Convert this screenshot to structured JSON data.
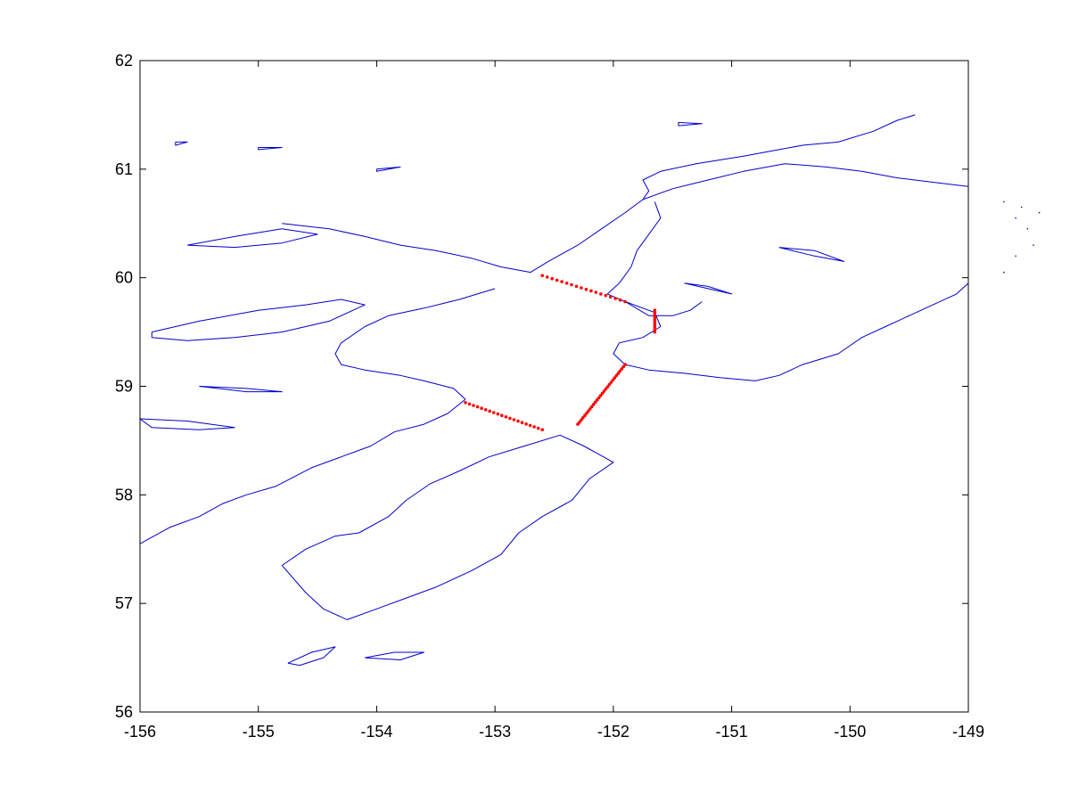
{
  "map": {
    "type": "coastline-map",
    "xlim": [
      -156,
      -149
    ],
    "ylim": [
      56,
      62
    ],
    "x_ticks": [
      -156,
      -155,
      -154,
      -153,
      -152,
      -151,
      -150,
      -149
    ],
    "y_ticks": [
      56,
      57,
      58,
      59,
      60,
      61,
      62
    ],
    "x_tick_labels": [
      "-156",
      "-155",
      "-154",
      "-153",
      "-152",
      "-151",
      "-150",
      "-149"
    ],
    "y_tick_labels": [
      "56",
      "57",
      "58",
      "59",
      "60",
      "61",
      "62"
    ],
    "coast_color": "#0000cc",
    "transect_color": "#ff0000",
    "grid": false,
    "coastlines": [
      {
        "name": "north-coast-west-to-head",
        "lonlat": [
          [
            -154.8,
            60.5
          ],
          [
            -154.4,
            60.45
          ],
          [
            -154.1,
            60.38
          ],
          [
            -153.8,
            60.3
          ],
          [
            -153.5,
            60.25
          ],
          [
            -153.2,
            60.18
          ],
          [
            -152.95,
            60.1
          ],
          [
            -152.7,
            60.05
          ],
          [
            -152.55,
            60.15
          ],
          [
            -152.3,
            60.3
          ],
          [
            -152.1,
            60.45
          ],
          [
            -151.9,
            60.6
          ],
          [
            -151.75,
            60.72
          ],
          [
            -151.7,
            60.8
          ],
          [
            -151.75,
            60.9
          ],
          [
            -151.6,
            60.98
          ],
          [
            -151.3,
            61.05
          ],
          [
            -150.9,
            61.12
          ],
          [
            -150.6,
            61.18
          ],
          [
            -150.4,
            61.22
          ],
          [
            -150.1,
            61.25
          ],
          [
            -149.8,
            61.35
          ],
          [
            -149.6,
            61.45
          ],
          [
            -149.45,
            61.5
          ]
        ]
      },
      {
        "name": "turnagain-arm",
        "lonlat": [
          [
            -151.75,
            60.72
          ],
          [
            -151.5,
            60.82
          ],
          [
            -151.2,
            60.9
          ],
          [
            -150.9,
            60.98
          ],
          [
            -150.55,
            61.05
          ],
          [
            -150.2,
            61.02
          ],
          [
            -149.9,
            60.98
          ],
          [
            -149.6,
            60.92
          ],
          [
            -149.3,
            60.88
          ],
          [
            -149.0,
            60.84
          ]
        ]
      },
      {
        "name": "kenai-west-coast",
        "lonlat": [
          [
            -151.65,
            60.7
          ],
          [
            -151.6,
            60.55
          ],
          [
            -151.7,
            60.4
          ],
          [
            -151.8,
            60.25
          ],
          [
            -151.85,
            60.1
          ],
          [
            -151.95,
            59.95
          ],
          [
            -152.05,
            59.85
          ],
          [
            -151.9,
            59.78
          ],
          [
            -151.65,
            59.68
          ],
          [
            -151.6,
            59.55
          ],
          [
            -151.75,
            59.45
          ],
          [
            -151.95,
            59.4
          ],
          [
            -152.0,
            59.3
          ],
          [
            -151.9,
            59.2
          ],
          [
            -151.7,
            59.15
          ],
          [
            -151.4,
            59.12
          ],
          [
            -151.1,
            59.08
          ],
          [
            -150.8,
            59.05
          ],
          [
            -150.6,
            59.1
          ],
          [
            -150.4,
            59.2
          ],
          [
            -150.1,
            59.3
          ],
          [
            -149.9,
            59.45
          ],
          [
            -149.7,
            59.55
          ],
          [
            -149.5,
            59.65
          ],
          [
            -149.3,
            59.75
          ],
          [
            -149.1,
            59.85
          ],
          [
            -149.0,
            59.95
          ]
        ]
      },
      {
        "name": "kachemak-spit",
        "lonlat": [
          [
            -151.9,
            59.78
          ],
          [
            -151.7,
            59.65
          ],
          [
            -151.5,
            59.65
          ],
          [
            -151.35,
            59.7
          ],
          [
            -151.25,
            59.78
          ]
        ]
      },
      {
        "name": "alaska-peninsula-north",
        "lonlat": [
          [
            -153.0,
            59.9
          ],
          [
            -153.3,
            59.8
          ],
          [
            -153.6,
            59.72
          ],
          [
            -153.9,
            59.65
          ],
          [
            -154.1,
            59.55
          ],
          [
            -154.3,
            59.4
          ],
          [
            -154.35,
            59.3
          ],
          [
            -154.3,
            59.2
          ],
          [
            -154.1,
            59.15
          ],
          [
            -153.8,
            59.1
          ],
          [
            -153.6,
            59.05
          ],
          [
            -153.35,
            58.98
          ],
          [
            -153.25,
            58.88
          ]
        ]
      },
      {
        "name": "alaska-peninsula-south",
        "lonlat": [
          [
            -153.25,
            58.88
          ],
          [
            -153.4,
            58.75
          ],
          [
            -153.6,
            58.65
          ],
          [
            -153.85,
            58.58
          ],
          [
            -154.05,
            58.45
          ],
          [
            -154.3,
            58.35
          ],
          [
            -154.55,
            58.25
          ],
          [
            -154.85,
            58.08
          ],
          [
            -155.1,
            58.0
          ],
          [
            -155.3,
            57.92
          ],
          [
            -155.5,
            57.8
          ],
          [
            -155.75,
            57.7
          ],
          [
            -156.0,
            57.55
          ]
        ]
      },
      {
        "name": "kodiak-archipelago",
        "lonlat": [
          [
            -154.8,
            57.35
          ],
          [
            -154.6,
            57.5
          ],
          [
            -154.35,
            57.62
          ],
          [
            -154.15,
            57.65
          ],
          [
            -153.9,
            57.8
          ],
          [
            -153.75,
            57.95
          ],
          [
            -153.55,
            58.1
          ],
          [
            -153.3,
            58.22
          ],
          [
            -153.05,
            58.35
          ],
          [
            -152.75,
            58.45
          ],
          [
            -152.45,
            58.55
          ],
          [
            -152.25,
            58.45
          ],
          [
            -152.0,
            58.3
          ],
          [
            -152.2,
            58.15
          ],
          [
            -152.35,
            57.95
          ],
          [
            -152.6,
            57.8
          ],
          [
            -152.8,
            57.65
          ],
          [
            -152.95,
            57.45
          ],
          [
            -153.2,
            57.3
          ],
          [
            -153.5,
            57.15
          ],
          [
            -153.75,
            57.05
          ],
          [
            -154.0,
            56.95
          ],
          [
            -154.25,
            56.85
          ],
          [
            -154.45,
            56.95
          ],
          [
            -154.6,
            57.1
          ],
          [
            -154.8,
            57.35
          ]
        ]
      },
      {
        "name": "sitkinak-island",
        "lonlat": [
          [
            -154.75,
            56.45
          ],
          [
            -154.55,
            56.55
          ],
          [
            -154.35,
            56.6
          ],
          [
            -154.45,
            56.5
          ],
          [
            -154.65,
            56.43
          ],
          [
            -154.75,
            56.45
          ]
        ]
      },
      {
        "name": "tugidak-island",
        "lonlat": [
          [
            -154.1,
            56.5
          ],
          [
            -153.85,
            56.55
          ],
          [
            -153.6,
            56.55
          ],
          [
            -153.8,
            56.48
          ],
          [
            -154.1,
            56.5
          ]
        ]
      },
      {
        "name": "augustine-area-lake",
        "lonlat": [
          [
            -155.9,
            59.5
          ],
          [
            -155.5,
            59.6
          ],
          [
            -155.0,
            59.7
          ],
          [
            -154.6,
            59.75
          ],
          [
            -154.3,
            59.8
          ],
          [
            -154.1,
            59.75
          ],
          [
            -154.4,
            59.6
          ],
          [
            -154.8,
            59.5
          ],
          [
            -155.2,
            59.45
          ],
          [
            -155.6,
            59.42
          ],
          [
            -155.9,
            59.45
          ],
          [
            -155.9,
            59.5
          ]
        ]
      },
      {
        "name": "iliamna-lake",
        "lonlat": [
          [
            -155.6,
            60.3
          ],
          [
            -155.2,
            60.38
          ],
          [
            -154.8,
            60.45
          ],
          [
            -154.5,
            60.4
          ],
          [
            -154.8,
            60.32
          ],
          [
            -155.2,
            60.28
          ],
          [
            -155.6,
            60.3
          ]
        ]
      },
      {
        "name": "skilak-lake",
        "lonlat": [
          [
            -150.6,
            60.28
          ],
          [
            -150.3,
            60.25
          ],
          [
            -150.05,
            60.15
          ],
          [
            -150.3,
            60.2
          ],
          [
            -150.6,
            60.28
          ]
        ]
      },
      {
        "name": "tustumena-lake",
        "lonlat": [
          [
            -151.4,
            59.95
          ],
          [
            -151.2,
            59.9
          ],
          [
            -151.0,
            59.85
          ],
          [
            -151.2,
            59.92
          ],
          [
            -151.4,
            59.95
          ]
        ]
      },
      {
        "name": "becharof-lake",
        "lonlat": [
          [
            -156.0,
            58.7
          ],
          [
            -155.6,
            58.68
          ],
          [
            -155.2,
            58.62
          ],
          [
            -155.5,
            58.6
          ],
          [
            -155.9,
            58.62
          ],
          [
            -156.0,
            58.7
          ]
        ]
      },
      {
        "name": "naknek-lake",
        "lonlat": [
          [
            -155.5,
            59.0
          ],
          [
            -155.1,
            58.98
          ],
          [
            -154.8,
            58.95
          ],
          [
            -155.1,
            58.95
          ],
          [
            -155.5,
            59.0
          ]
        ]
      },
      {
        "name": "mainland-islet-1",
        "lonlat": [
          [
            -155.0,
            61.2
          ],
          [
            -154.8,
            61.2
          ],
          [
            -155.0,
            61.18
          ],
          [
            -155.0,
            61.2
          ]
        ]
      },
      {
        "name": "mainland-islet-2",
        "lonlat": [
          [
            -154.0,
            61.0
          ],
          [
            -153.8,
            61.02
          ],
          [
            -154.0,
            60.98
          ],
          [
            -154.0,
            61.0
          ]
        ]
      },
      {
        "name": "mainland-islet-3",
        "lonlat": [
          [
            -151.45,
            61.43
          ],
          [
            -151.25,
            61.42
          ],
          [
            -151.45,
            61.4
          ],
          [
            -151.45,
            61.43
          ]
        ]
      },
      {
        "name": "mainland-islet-4",
        "lonlat": [
          [
            -155.7,
            61.25
          ],
          [
            -155.6,
            61.25
          ],
          [
            -155.7,
            61.22
          ],
          [
            -155.7,
            61.25
          ]
        ]
      }
    ],
    "stray_points": [
      [
        -148.7,
        60.7
      ],
      [
        -148.6,
        60.55
      ],
      [
        -148.5,
        60.45
      ],
      [
        -148.45,
        60.3
      ],
      [
        -148.6,
        60.2
      ],
      [
        -148.7,
        60.05
      ],
      [
        -148.4,
        60.6
      ],
      [
        -148.55,
        60.65
      ]
    ],
    "transects": [
      {
        "name": "transect-1",
        "from": [
          -152.6,
          60.02
        ],
        "to": [
          -151.9,
          59.78
        ],
        "points": 18
      },
      {
        "name": "transect-2",
        "from": [
          -151.65,
          59.7
        ],
        "to": [
          -151.65,
          59.5
        ],
        "points": 10
      },
      {
        "name": "transect-3",
        "from": [
          -151.9,
          59.2
        ],
        "to": [
          -152.3,
          58.65
        ],
        "points": 28
      },
      {
        "name": "transect-4",
        "from": [
          -153.25,
          58.85
        ],
        "to": [
          -152.6,
          58.6
        ],
        "points": 20
      }
    ]
  }
}
